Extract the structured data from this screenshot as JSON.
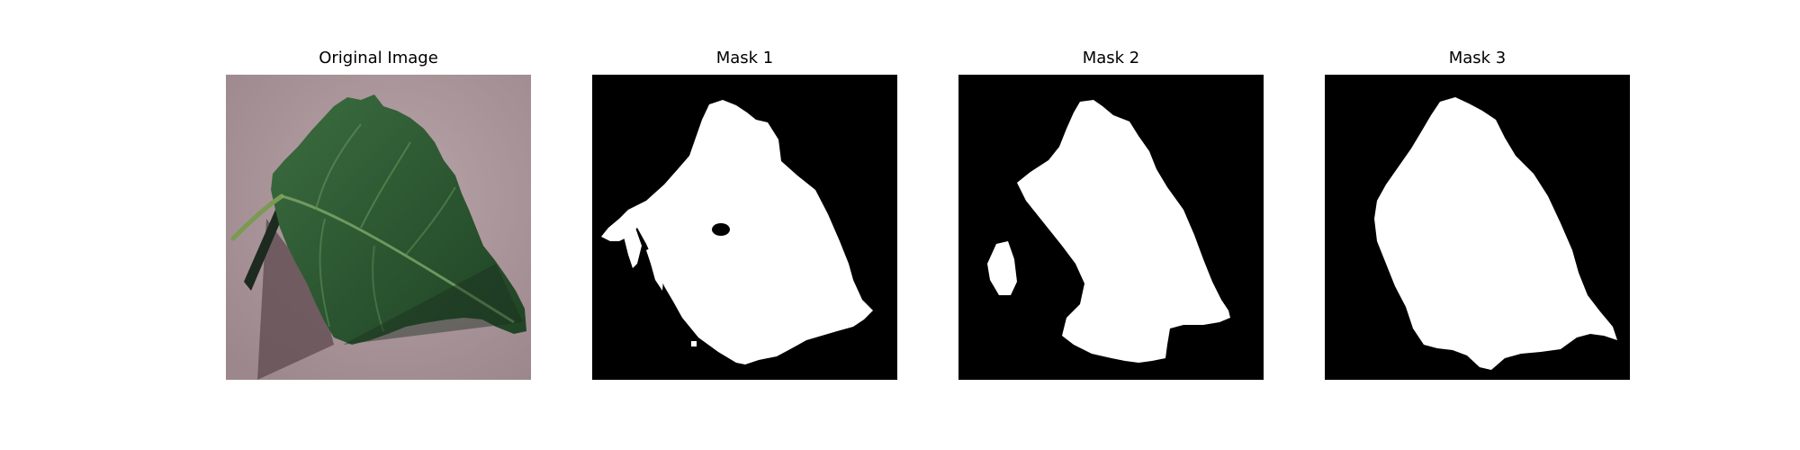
{
  "panels": [
    {
      "title": "Original Image",
      "kind": "leaf-photo"
    },
    {
      "title": "Mask 1",
      "kind": "binary-mask"
    },
    {
      "title": "Mask 2",
      "kind": "binary-mask"
    },
    {
      "title": "Mask 3",
      "kind": "binary-mask"
    }
  ],
  "colors": {
    "background": "#ffffff",
    "mask_background": "#000000",
    "mask_foreground": "#ffffff",
    "leaf": "#2f5a34",
    "photo_background": "#a58f94"
  }
}
